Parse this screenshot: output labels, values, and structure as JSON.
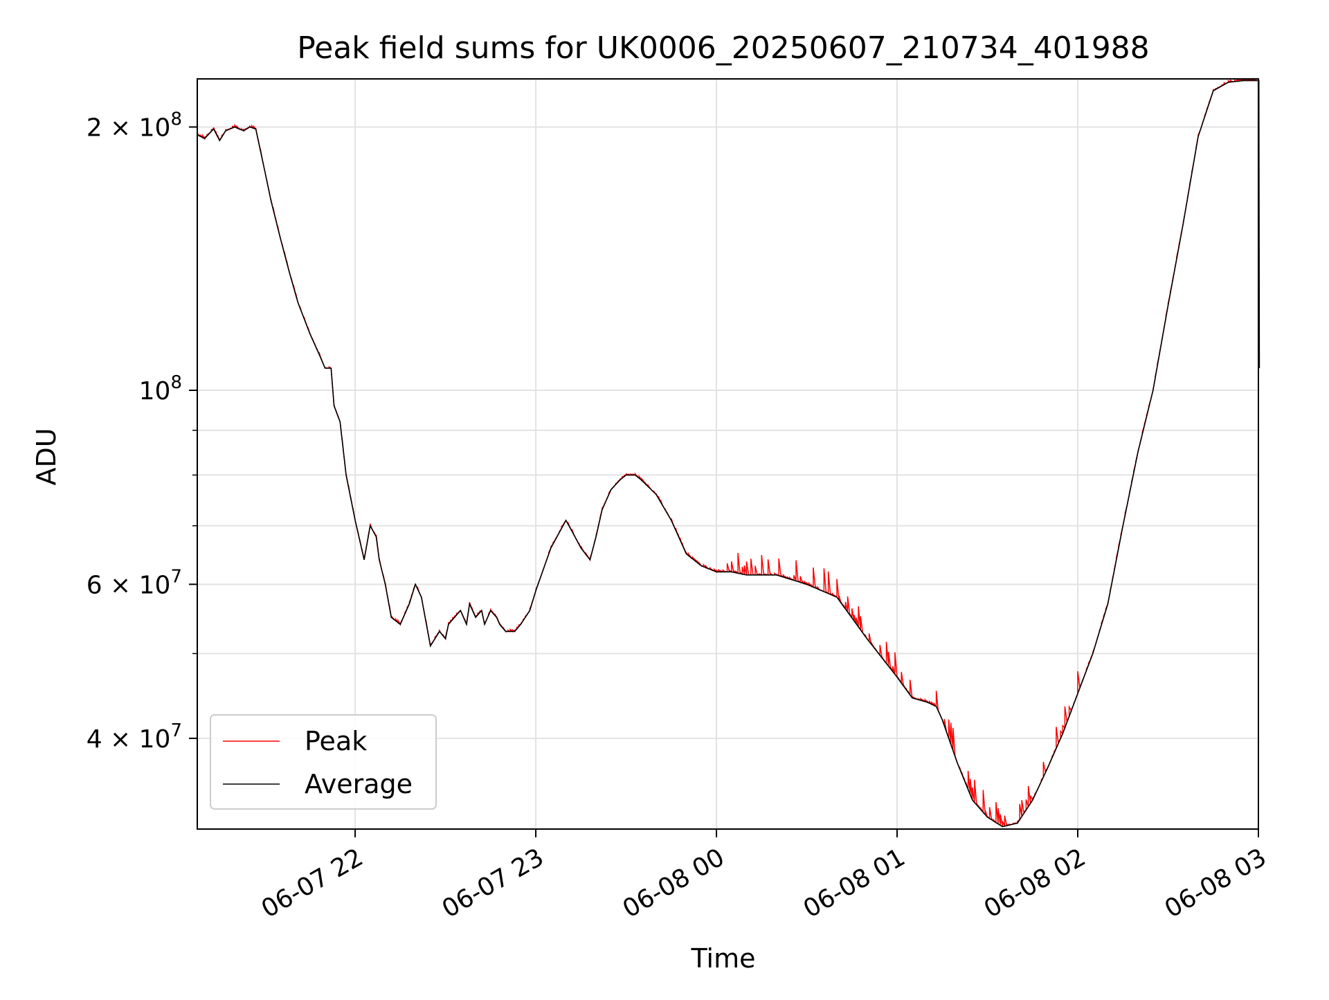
{
  "chart_data": {
    "type": "line",
    "title": "Peak field sums for UK0006_20250607_210734_401988",
    "xlabel": "Time",
    "ylabel": "ADU",
    "x_axis_type": "datetime",
    "y_scale": "log",
    "xlim": [
      "2025-06-07 21:07:34",
      "2025-06-08 03:00:00"
    ],
    "ylim": [
      31500000,
      227000000
    ],
    "grid": true,
    "legend_position": "lower-left",
    "x_ticks": [
      {
        "value": "2025-06-07 22:00",
        "label": "06-07 22"
      },
      {
        "value": "2025-06-07 23:00",
        "label": "06-07 23"
      },
      {
        "value": "2025-06-08 00:00",
        "label": "06-08 00"
      },
      {
        "value": "2025-06-08 01:00",
        "label": "06-08 01"
      },
      {
        "value": "2025-06-08 02:00",
        "label": "06-08 02"
      },
      {
        "value": "2025-06-08 03:00",
        "label": "06-08 03"
      }
    ],
    "y_major_ticks": [
      {
        "value": 40000000,
        "mantissa": "4",
        "base": "10",
        "exponent": "7"
      },
      {
        "value": 60000000,
        "mantissa": "6",
        "base": "10",
        "exponent": "7"
      },
      {
        "value": 100000000,
        "mantissa": "",
        "base": "10",
        "exponent": "8"
      },
      {
        "value": 200000000,
        "mantissa": "2",
        "base": "10",
        "exponent": "8"
      }
    ],
    "y_minor_ticks": [
      50000000,
      70000000,
      80000000,
      90000000
    ],
    "series": [
      {
        "name": "Average",
        "color": "#000000",
        "x": [
          "2025-06-07 21:07:34",
          "2025-06-07 21:10",
          "2025-06-07 21:13",
          "2025-06-07 21:15",
          "2025-06-07 21:17",
          "2025-06-07 21:20",
          "2025-06-07 21:23",
          "2025-06-07 21:25",
          "2025-06-07 21:27",
          "2025-06-07 21:30",
          "2025-06-07 21:32",
          "2025-06-07 21:35",
          "2025-06-07 21:38",
          "2025-06-07 21:41",
          "2025-06-07 21:45",
          "2025-06-07 21:48",
          "2025-06-07 21:50",
          "2025-06-07 21:52",
          "2025-06-07 21:53",
          "2025-06-07 21:55",
          "2025-06-07 21:57",
          "2025-06-07 22:00",
          "2025-06-07 22:03",
          "2025-06-07 22:05",
          "2025-06-07 22:07",
          "2025-06-07 22:08",
          "2025-06-07 22:10",
          "2025-06-07 22:12",
          "2025-06-07 22:15",
          "2025-06-07 22:18",
          "2025-06-07 22:20",
          "2025-06-07 22:22",
          "2025-06-07 22:25",
          "2025-06-07 22:28",
          "2025-06-07 22:30",
          "2025-06-07 22:31",
          "2025-06-07 22:33",
          "2025-06-07 22:35",
          "2025-06-07 22:37",
          "2025-06-07 22:38",
          "2025-06-07 22:40",
          "2025-06-07 22:42",
          "2025-06-07 22:43",
          "2025-06-07 22:45",
          "2025-06-07 22:47",
          "2025-06-07 22:48",
          "2025-06-07 22:50",
          "2025-06-07 22:53",
          "2025-06-07 22:55",
          "2025-06-07 22:58",
          "2025-06-07 23:00",
          "2025-06-07 23:05",
          "2025-06-07 23:10",
          "2025-06-07 23:12",
          "2025-06-07 23:15",
          "2025-06-07 23:18",
          "2025-06-07 23:20",
          "2025-06-07 23:22",
          "2025-06-07 23:25",
          "2025-06-07 23:28",
          "2025-06-07 23:30",
          "2025-06-07 23:33",
          "2025-06-07 23:35",
          "2025-06-07 23:40",
          "2025-06-07 23:45",
          "2025-06-07 23:50",
          "2025-06-07 23:55",
          "2025-06-08 00:00",
          "2025-06-08 00:05",
          "2025-06-08 00:10",
          "2025-06-08 00:20",
          "2025-06-08 00:30",
          "2025-06-08 00:40",
          "2025-06-08 00:50",
          "2025-06-08 01:00",
          "2025-06-08 01:05",
          "2025-06-08 01:10",
          "2025-06-08 01:13",
          "2025-06-08 01:15",
          "2025-06-08 01:20",
          "2025-06-08 01:25",
          "2025-06-08 01:30",
          "2025-06-08 01:35",
          "2025-06-08 01:40",
          "2025-06-08 01:45",
          "2025-06-08 01:50",
          "2025-06-08 01:55",
          "2025-06-08 02:00",
          "2025-06-08 02:05",
          "2025-06-08 02:10",
          "2025-06-08 02:15",
          "2025-06-08 02:20",
          "2025-06-08 02:25",
          "2025-06-08 02:30",
          "2025-06-08 02:35",
          "2025-06-08 02:40",
          "2025-06-08 02:45",
          "2025-06-08 02:50",
          "2025-06-08 02:55",
          "2025-06-08 02:59",
          "2025-06-08 03:00",
          "2025-06-08 03:00:10",
          "2025-06-08 03:00:20"
        ],
        "y": [
          196000000,
          194000000,
          199000000,
          193000000,
          198000000,
          200000000,
          198000000,
          200000000,
          199000000,
          178000000,
          165000000,
          150000000,
          137000000,
          126000000,
          116000000,
          110000000,
          106000000,
          106000000,
          96000000,
          92000000,
          80000000,
          71000000,
          64000000,
          70000000,
          68000000,
          64000000,
          60000000,
          55000000,
          54000000,
          57000000,
          60000000,
          58000000,
          51000000,
          53000000,
          52000000,
          54000000,
          55000000,
          56000000,
          54000000,
          57000000,
          55000000,
          56000000,
          54000000,
          56000000,
          55000000,
          54000000,
          53000000,
          53000000,
          54000000,
          56000000,
          59000000,
          66000000,
          71000000,
          69000000,
          66000000,
          64000000,
          68000000,
          73000000,
          77000000,
          79000000,
          80000000,
          80000000,
          79000000,
          76000000,
          71000000,
          65000000,
          63000000,
          62000000,
          62000000,
          61500000,
          61500000,
          60000000,
          58000000,
          52000000,
          47000000,
          44500000,
          44000000,
          43500000,
          42000000,
          37500000,
          34000000,
          32500000,
          31700000,
          32000000,
          34000000,
          37000000,
          40500000,
          45000000,
          50000000,
          57000000,
          70000000,
          85000000,
          100000000,
          125000000,
          155000000,
          195000000,
          220000000,
          225000000,
          226000000,
          226000000,
          226000000,
          226000000,
          106000000
        ]
      },
      {
        "name": "Peak",
        "color": "#ff0000"
      }
    ]
  }
}
